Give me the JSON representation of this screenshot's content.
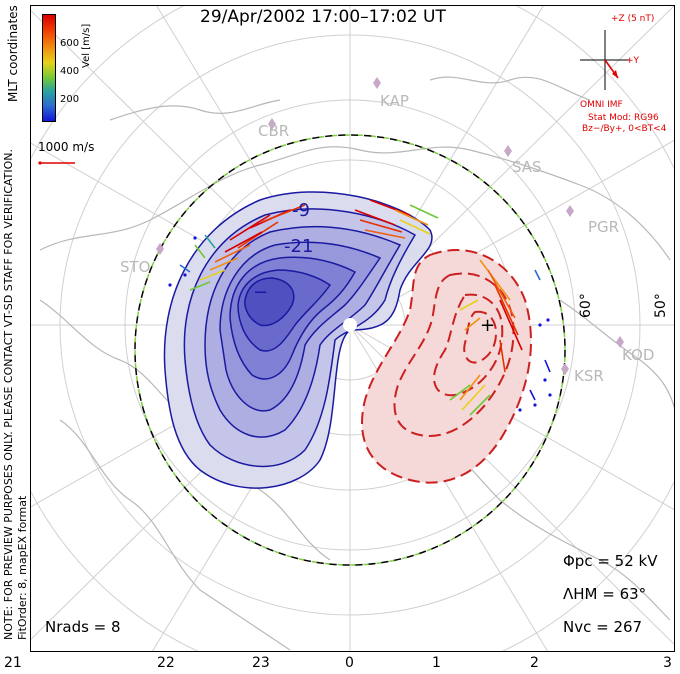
{
  "title": "29/Apr/2002 17:00–17:02 UT",
  "side_note_1": "NOTE: FOR PREVIEW PURPOSES ONLY. PLEASE CONTACT VT-SD STAFF FOR VERIFICATION.",
  "side_note_2": "FitOrder: 8, mapEX format",
  "coords": "MLT coordinates",
  "colorbar": {
    "label": "Vel [m/s]",
    "ticks": [
      "600",
      "400",
      "200"
    ],
    "colors": [
      "#d80000",
      "#f08a10",
      "#e6d21a",
      "#6ec83a",
      "#2aa3a0",
      "#1515d8"
    ]
  },
  "ref_vector": "1000 m/s",
  "imf": {
    "scale": "+Z (5 nT)",
    "y_axis": "+Y",
    "source": "OMNI IMF",
    "model": "Stat Mod: RG96",
    "condition": "Bz−/By+, 0<BT<4"
  },
  "stats": {
    "phi_pc": "Φpc = 52 kV",
    "lambda_hm": "ΛHM = 63°",
    "n_vc": "Nvc = 267",
    "n_rads": "Nrads = 8"
  },
  "mlt_ticks": [
    "21",
    "22",
    "23",
    "0",
    "1",
    "2",
    "3"
  ],
  "latitudes": [
    "60°",
    "50°"
  ],
  "stations": [
    "KAP",
    "CBR",
    "SAS",
    "PGR",
    "STO",
    "KOD",
    "KSR"
  ],
  "contour_labels": [
    "-9",
    "-21",
    "−",
    "+"
  ]
}
